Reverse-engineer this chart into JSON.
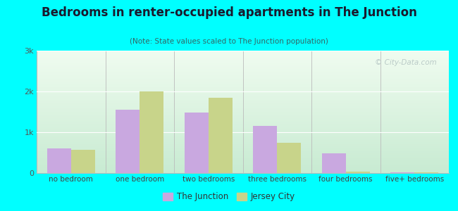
{
  "title": "Bedrooms in renter-occupied apartments in The Junction",
  "subtitle": "(Note: State values scaled to The Junction population)",
  "categories": [
    "no bedroom",
    "one bedroom",
    "two bedrooms",
    "three bedrooms",
    "four bedrooms",
    "five+ bedrooms"
  ],
  "junction_values": [
    600,
    1550,
    1480,
    1150,
    480,
    10
  ],
  "jersey_values": [
    570,
    2000,
    1850,
    750,
    30,
    10
  ],
  "junction_color": "#c9a8e0",
  "jersey_color": "#c8d48a",
  "ylim": [
    0,
    3000
  ],
  "yticks": [
    0,
    1000,
    2000,
    3000
  ],
  "ytick_labels": [
    "0",
    "1k",
    "2k",
    "3k"
  ],
  "background_color": "#00ffff",
  "bar_width": 0.35,
  "legend_labels": [
    "The Junction",
    "Jersey City"
  ],
  "watermark": "© City-Data.com"
}
